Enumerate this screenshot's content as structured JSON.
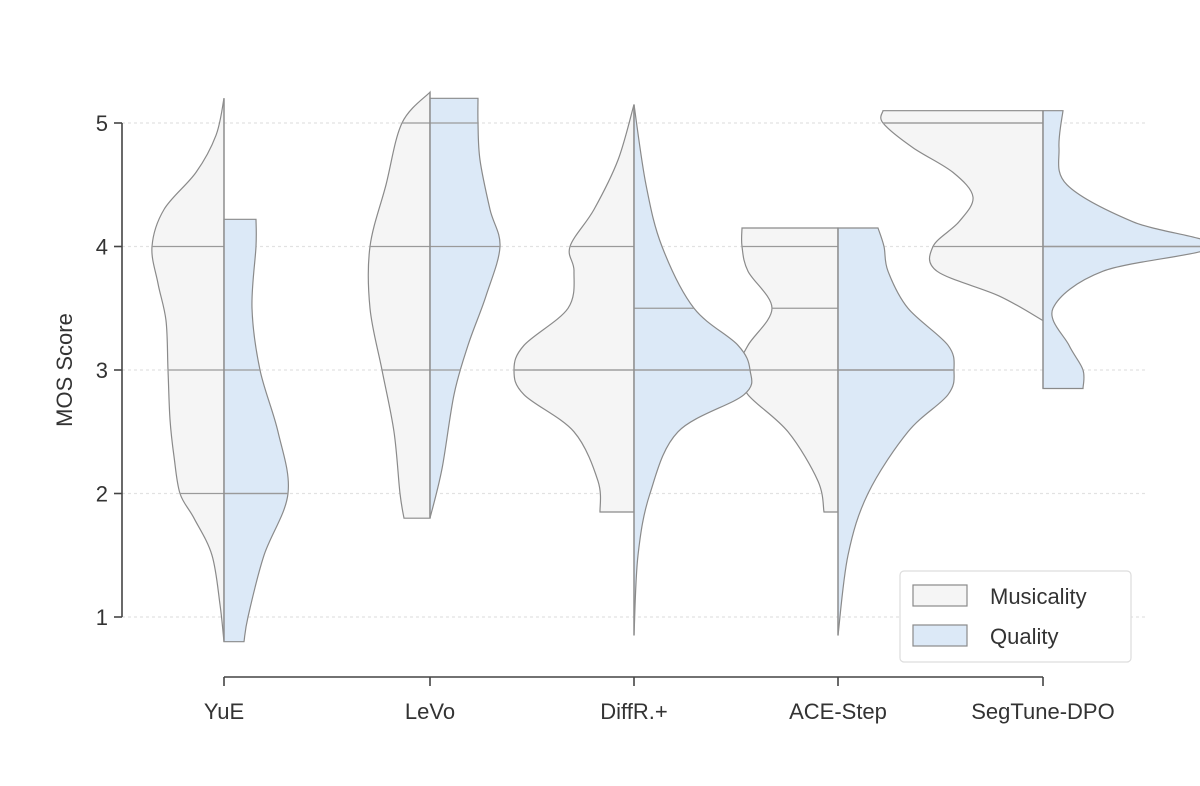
{
  "chart_data": {
    "type": "violin",
    "title": "",
    "xlabel": "",
    "ylabel": "MOS Score",
    "ylim": [
      0.65,
      5.4
    ],
    "yticks": [
      "1",
      "2",
      "3",
      "4",
      "5"
    ],
    "grid": "horizontal dashed",
    "legend_position": "bottom-right",
    "categories": [
      "YuE",
      "LeVo",
      "DiffR.+",
      "ACE-Step",
      "SegTune-DPO"
    ],
    "series": [
      {
        "name": "Musicality",
        "color": "#f5f5f5",
        "side": "left",
        "violins": [
          {
            "range": [
              0.8,
              5.2
            ],
            "quartiles": [
              2,
              3,
              4
            ],
            "profile": [
              [
                0.8,
                0.0
              ],
              [
                1.1,
                0.02
              ],
              [
                1.5,
                0.06
              ],
              [
                1.8,
                0.15
              ],
              [
                2.0,
                0.22
              ],
              [
                2.3,
                0.25
              ],
              [
                2.6,
                0.27
              ],
              [
                3.0,
                0.28
              ],
              [
                3.4,
                0.29
              ],
              [
                3.7,
                0.33
              ],
              [
                4.0,
                0.36
              ],
              [
                4.3,
                0.3
              ],
              [
                4.6,
                0.14
              ],
              [
                4.9,
                0.04
              ],
              [
                5.2,
                0.0
              ]
            ]
          },
          {
            "range": [
              1.8,
              5.25
            ],
            "quartiles": [
              3,
              4,
              5
            ],
            "profile": [
              [
                1.8,
                0.13
              ],
              [
                2.0,
                0.15
              ],
              [
                2.5,
                0.18
              ],
              [
                3.0,
                0.24
              ],
              [
                3.5,
                0.3
              ],
              [
                4.0,
                0.3
              ],
              [
                4.5,
                0.22
              ],
              [
                5.0,
                0.14
              ],
              [
                5.25,
                0.0
              ]
            ]
          },
          {
            "range": [
              0.85,
              5.15
            ],
            "quartiles": [
              3,
              3,
              4
            ],
            "profile": [
              [
                1.85,
                0.17
              ],
              [
                2.1,
                0.18
              ],
              [
                2.5,
                0.3
              ],
              [
                2.8,
                0.55
              ],
              [
                3.0,
                0.6
              ],
              [
                3.2,
                0.55
              ],
              [
                3.5,
                0.33
              ],
              [
                3.8,
                0.3
              ],
              [
                4.0,
                0.32
              ],
              [
                4.3,
                0.2
              ],
              [
                4.7,
                0.08
              ],
              [
                5.15,
                0.0
              ]
            ]
          },
          {
            "range": [
              0.85,
              4.15
            ],
            "quartiles": [
              3,
              3.5,
              4
            ],
            "profile": [
              [
                1.85,
                0.07
              ],
              [
                2.1,
                0.1
              ],
              [
                2.5,
                0.25
              ],
              [
                2.8,
                0.45
              ],
              [
                3.0,
                0.5
              ],
              [
                3.2,
                0.45
              ],
              [
                3.5,
                0.33
              ],
              [
                3.8,
                0.45
              ],
              [
                4.0,
                0.48
              ],
              [
                4.15,
                0.48
              ]
            ]
          },
          {
            "range": [
              3.4,
              5.1
            ],
            "quartiles": [
              4,
              5,
              5
            ],
            "profile": [
              [
                3.4,
                0.0
              ],
              [
                3.6,
                0.22
              ],
              [
                3.8,
                0.53
              ],
              [
                4.0,
                0.55
              ],
              [
                4.2,
                0.42
              ],
              [
                4.4,
                0.35
              ],
              [
                4.6,
                0.45
              ],
              [
                4.8,
                0.65
              ],
              [
                5.0,
                0.8
              ],
              [
                5.1,
                0.8
              ]
            ]
          }
        ]
      },
      {
        "name": "Quality",
        "color": "#dce9f7",
        "side": "right",
        "violins": [
          {
            "range": [
              0.8,
              4.22
            ],
            "quartiles": [
              2,
              2,
              3
            ],
            "profile": [
              [
                0.8,
                0.1
              ],
              [
                1.0,
                0.12
              ],
              [
                1.5,
                0.2
              ],
              [
                2.0,
                0.32
              ],
              [
                2.5,
                0.27
              ],
              [
                3.0,
                0.18
              ],
              [
                3.5,
                0.14
              ],
              [
                4.0,
                0.16
              ],
              [
                4.22,
                0.16
              ]
            ]
          },
          {
            "range": [
              1.8,
              5.2
            ],
            "quartiles": [
              3,
              4,
              5
            ],
            "profile": [
              [
                1.8,
                0.0
              ],
              [
                2.2,
                0.06
              ],
              [
                2.8,
                0.12
              ],
              [
                3.2,
                0.19
              ],
              [
                3.6,
                0.28
              ],
              [
                4.0,
                0.35
              ],
              [
                4.3,
                0.3
              ],
              [
                4.7,
                0.25
              ],
              [
                5.0,
                0.24
              ],
              [
                5.2,
                0.24
              ]
            ]
          },
          {
            "range": [
              0.85,
              5.15
            ],
            "quartiles": [
              3,
              3,
              3.5
            ],
            "profile": [
              [
                0.85,
                0.0
              ],
              [
                1.5,
                0.02
              ],
              [
                2.0,
                0.08
              ],
              [
                2.5,
                0.22
              ],
              [
                2.8,
                0.55
              ],
              [
                3.0,
                0.58
              ],
              [
                3.2,
                0.52
              ],
              [
                3.5,
                0.3
              ],
              [
                4.0,
                0.14
              ],
              [
                4.5,
                0.06
              ],
              [
                5.15,
                0.0
              ]
            ]
          },
          {
            "range": [
              0.85,
              4.15
            ],
            "quartiles": [
              3,
              3,
              3
            ],
            "profile": [
              [
                0.85,
                0.0
              ],
              [
                1.5,
                0.05
              ],
              [
                2.0,
                0.15
              ],
              [
                2.5,
                0.35
              ],
              [
                2.8,
                0.55
              ],
              [
                3.0,
                0.58
              ],
              [
                3.2,
                0.55
              ],
              [
                3.5,
                0.35
              ],
              [
                3.8,
                0.25
              ],
              [
                4.0,
                0.23
              ],
              [
                4.15,
                0.2
              ]
            ]
          },
          {
            "range": [
              2.85,
              5.1
            ],
            "quartiles": [
              4,
              4,
              4
            ],
            "profile": [
              [
                2.85,
                0.2
              ],
              [
                3.0,
                0.2
              ],
              [
                3.2,
                0.13
              ],
              [
                3.5,
                0.05
              ],
              [
                3.8,
                0.3
              ],
              [
                4.0,
                0.85
              ],
              [
                4.2,
                0.45
              ],
              [
                4.5,
                0.12
              ],
              [
                4.8,
                0.08
              ],
              [
                5.1,
                0.1
              ]
            ]
          }
        ]
      }
    ]
  }
}
